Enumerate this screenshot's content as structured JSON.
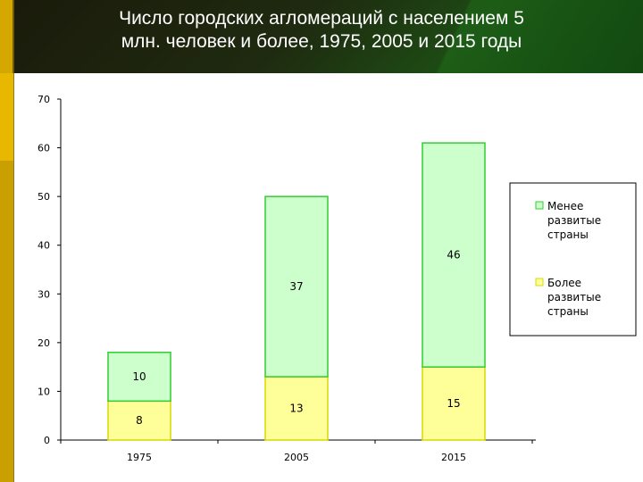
{
  "header": {
    "title_line1": "Число городских агломераций с населением 5",
    "title_line2": "млн. человек и более, 1975, 2005 и 2015 годы"
  },
  "colors": {
    "less_developed": "#ccffcc",
    "less_developed_stroke": "#33cc33",
    "more_developed": "#ffff99",
    "more_developed_stroke": "#d8d800"
  },
  "chart_data": {
    "type": "bar",
    "stacked": true,
    "title": "Число городских агломераций с населением 5 млн. человек и более, 1975, 2005 и 2015 годы",
    "categories": [
      "1975",
      "2005",
      "2015"
    ],
    "series": [
      {
        "name": "Более развитые страны",
        "values": [
          8,
          13,
          15
        ]
      },
      {
        "name": "Менее развитые страны",
        "values": [
          10,
          37,
          46
        ]
      }
    ],
    "ylim": [
      0,
      70
    ],
    "yticks": [
      "0",
      "10",
      "20",
      "30",
      "40",
      "50",
      "60",
      "70"
    ],
    "grid": false,
    "legend": {
      "position": "right",
      "entries": [
        {
          "lines": [
            "Менее",
            "развитые",
            "страны"
          ]
        },
        {
          "lines": [
            "Более",
            "развитые",
            "страны"
          ]
        }
      ]
    }
  }
}
